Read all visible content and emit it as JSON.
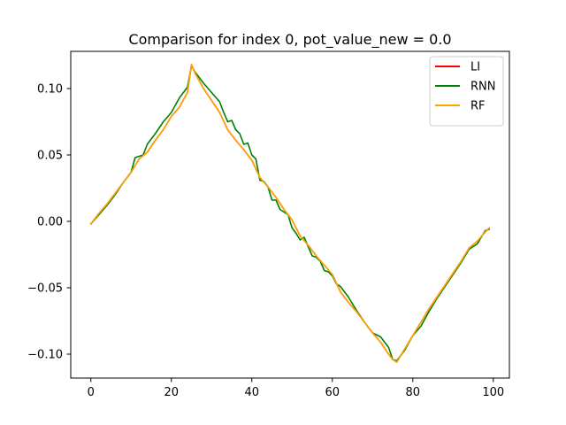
{
  "chart_data": {
    "type": "line",
    "title": "Comparison for index 0, pot_value_new = 0.0",
    "xlabel": "",
    "ylabel": "",
    "xlim": [
      -5,
      104
    ],
    "ylim": [
      -0.118,
      0.128
    ],
    "xticks": [
      0,
      20,
      40,
      60,
      80,
      100
    ],
    "xtick_labels": [
      "0",
      "20",
      "40",
      "60",
      "80",
      "100"
    ],
    "yticks": [
      -0.1,
      -0.05,
      0.0,
      0.05,
      0.1
    ],
    "ytick_labels": [
      "−0.10",
      "−0.05",
      "0.00",
      "0.05",
      "0.10"
    ],
    "grid": false,
    "legend_position": "top-right",
    "series": [
      {
        "name": "LI",
        "color": "#ff0000",
        "x": [
          0,
          2,
          4,
          6,
          8,
          10,
          12,
          14,
          16,
          18,
          20,
          22,
          24,
          25,
          26,
          28,
          30,
          32,
          34,
          36,
          38,
          40,
          42,
          44,
          46,
          48,
          50,
          52,
          54,
          56,
          58,
          60,
          62,
          64,
          66,
          68,
          70,
          72,
          74,
          75,
          76,
          78,
          80,
          82,
          84,
          86,
          88,
          90,
          92,
          94,
          96,
          98,
          99
        ],
        "y": [
          -0.002,
          0.006,
          0.013,
          0.021,
          0.029,
          0.037,
          0.047,
          0.052,
          0.061,
          0.069,
          0.079,
          0.086,
          0.097,
          0.118,
          0.111,
          0.1,
          0.091,
          0.082,
          0.069,
          0.061,
          0.054,
          0.046,
          0.033,
          0.026,
          0.018,
          0.009,
          0.001,
          -0.011,
          -0.018,
          -0.026,
          -0.033,
          -0.04,
          -0.053,
          -0.061,
          -0.068,
          -0.076,
          -0.084,
          -0.091,
          -0.1,
          -0.104,
          -0.106,
          -0.096,
          -0.086,
          -0.076,
          -0.066,
          -0.057,
          -0.048,
          -0.039,
          -0.03,
          -0.02,
          -0.015,
          -0.008,
          -0.005
        ]
      },
      {
        "name": "RNN",
        "color": "#008000",
        "x": [
          0,
          2,
          4,
          6,
          8,
          10,
          11,
          12,
          13,
          14,
          16,
          18,
          20,
          22,
          24,
          25,
          26,
          28,
          30,
          32,
          33,
          34,
          35,
          36,
          37,
          38,
          39,
          40,
          41,
          42,
          43,
          44,
          45,
          46,
          47,
          48,
          49,
          50,
          51,
          52,
          53,
          54,
          55,
          56,
          57,
          58,
          59,
          60,
          61,
          62,
          64,
          66,
          68,
          70,
          72,
          74,
          75,
          76,
          78,
          80,
          82,
          84,
          86,
          88,
          90,
          92,
          94,
          96,
          98,
          99
        ],
        "y": [
          -0.002,
          0.005,
          0.012,
          0.02,
          0.029,
          0.037,
          0.048,
          0.049,
          0.05,
          0.058,
          0.066,
          0.075,
          0.082,
          0.093,
          0.101,
          0.117,
          0.112,
          0.104,
          0.097,
          0.09,
          0.082,
          0.075,
          0.076,
          0.069,
          0.066,
          0.058,
          0.059,
          0.05,
          0.047,
          0.031,
          0.03,
          0.026,
          0.016,
          0.016,
          0.009,
          0.007,
          0.005,
          -0.005,
          -0.009,
          -0.014,
          -0.012,
          -0.019,
          -0.026,
          -0.027,
          -0.03,
          -0.037,
          -0.038,
          -0.041,
          -0.047,
          -0.049,
          -0.057,
          -0.067,
          -0.076,
          -0.084,
          -0.087,
          -0.095,
          -0.104,
          -0.105,
          -0.097,
          -0.086,
          -0.079,
          -0.068,
          -0.058,
          -0.049,
          -0.04,
          -0.031,
          -0.021,
          -0.017,
          -0.007,
          -0.006
        ]
      },
      {
        "name": "RF",
        "color": "#ffa500",
        "x": [
          0,
          2,
          4,
          6,
          8,
          10,
          12,
          14,
          16,
          18,
          20,
          22,
          24,
          25,
          26,
          28,
          30,
          32,
          34,
          36,
          38,
          40,
          42,
          44,
          46,
          48,
          50,
          52,
          54,
          56,
          58,
          60,
          62,
          64,
          66,
          68,
          70,
          72,
          74,
          75,
          76,
          78,
          80,
          82,
          84,
          86,
          88,
          90,
          92,
          94,
          96,
          98,
          99
        ],
        "y": [
          -0.002,
          0.006,
          0.013,
          0.021,
          0.029,
          0.037,
          0.047,
          0.052,
          0.061,
          0.069,
          0.079,
          0.086,
          0.097,
          0.118,
          0.111,
          0.1,
          0.091,
          0.082,
          0.069,
          0.061,
          0.054,
          0.046,
          0.033,
          0.026,
          0.018,
          0.009,
          0.001,
          -0.011,
          -0.018,
          -0.026,
          -0.033,
          -0.04,
          -0.053,
          -0.061,
          -0.068,
          -0.076,
          -0.084,
          -0.091,
          -0.1,
          -0.104,
          -0.106,
          -0.096,
          -0.086,
          -0.076,
          -0.066,
          -0.057,
          -0.048,
          -0.039,
          -0.03,
          -0.02,
          -0.015,
          -0.008,
          -0.005
        ]
      }
    ]
  }
}
